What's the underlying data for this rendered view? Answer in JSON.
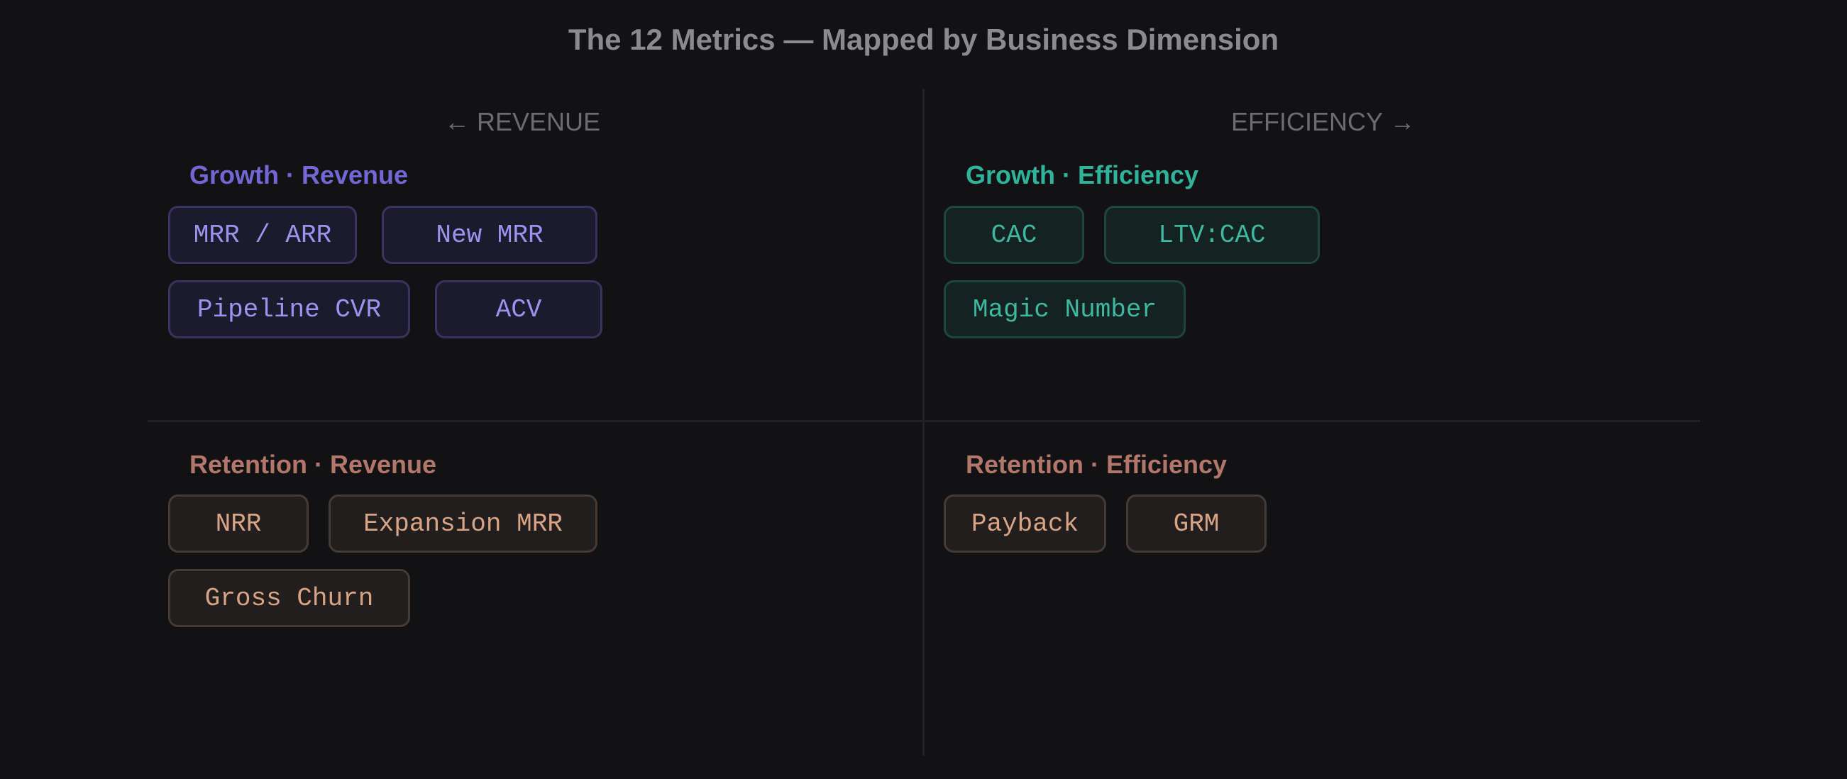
{
  "title": "The 12 Metrics — Mapped by Business Dimension",
  "axes": {
    "left": "← REVENUE",
    "right": "EFFICIENCY →"
  },
  "colors": {
    "growth_revenue": "#7466d4",
    "growth_efficiency": "#2fb49b",
    "retention": "#b2766a"
  },
  "quadrants": {
    "growth_revenue": {
      "label": "Growth · Revenue",
      "metrics": [
        "MRR / ARR",
        "New MRR",
        "Pipeline CVR",
        "ACV"
      ]
    },
    "growth_efficiency": {
      "label": "Growth · Efficiency",
      "metrics": [
        "CAC",
        "LTV:CAC",
        "Magic Number"
      ]
    },
    "retention_revenue": {
      "label": "Retention · Revenue",
      "metrics": [
        "NRR",
        "Expansion MRR",
        "Gross Churn"
      ]
    },
    "retention_efficiency": {
      "label": "Retention · Efficiency",
      "metrics": [
        "Payback",
        "GRM"
      ]
    }
  }
}
